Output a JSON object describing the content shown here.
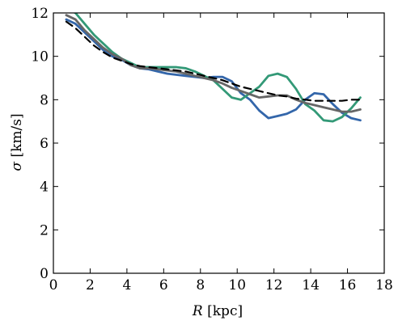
{
  "chart_data": {
    "type": "line",
    "xlabel_italic": "R",
    "xlabel_rest": " [kpc]",
    "ylabel_italic": "σ",
    "ylabel_rest": " [km/s]",
    "xlim": [
      0,
      18
    ],
    "ylim": [
      0,
      12
    ],
    "xticks": [
      0,
      2,
      4,
      6,
      8,
      10,
      12,
      14,
      16,
      18
    ],
    "yticks": [
      0,
      2,
      4,
      6,
      8,
      10,
      12
    ],
    "grid": false,
    "series": [
      {
        "color": "#3366aa",
        "style": "solid",
        "x": [
          0.7,
          1.2,
          1.7,
          2.2,
          2.7,
          3.2,
          3.7,
          4.2,
          4.7,
          5.2,
          5.7,
          6.2,
          6.7,
          7.2,
          7.7,
          8.2,
          8.7,
          9.2,
          9.7,
          10.2,
          10.7,
          11.2,
          11.7,
          12.2,
          12.7,
          13.2,
          13.7,
          14.2,
          14.7,
          15.2,
          15.7,
          16.2,
          16.7
        ],
        "y": [
          11.7,
          11.5,
          11.1,
          10.7,
          10.3,
          10.0,
          9.85,
          9.6,
          9.45,
          9.4,
          9.3,
          9.2,
          9.15,
          9.1,
          9.05,
          9.0,
          9.05,
          9.05,
          8.85,
          8.3,
          8.0,
          7.5,
          7.15,
          7.25,
          7.35,
          7.55,
          8.0,
          8.3,
          8.25,
          7.8,
          7.4,
          7.15,
          7.05
        ]
      },
      {
        "color": "#339977",
        "style": "solid",
        "x": [
          0.7,
          1.2,
          1.7,
          2.2,
          2.7,
          3.2,
          3.7,
          4.2,
          4.7,
          5.2,
          5.7,
          6.2,
          6.7,
          7.2,
          7.7,
          8.2,
          8.7,
          9.2,
          9.7,
          10.2,
          10.7,
          11.2,
          11.7,
          12.2,
          12.7,
          13.2,
          13.7,
          14.2,
          14.7,
          15.2,
          15.7,
          16.2,
          16.7
        ],
        "y": [
          12.2,
          12.0,
          11.5,
          11.0,
          10.6,
          10.2,
          9.9,
          9.7,
          9.5,
          9.5,
          9.5,
          9.5,
          9.5,
          9.45,
          9.3,
          9.1,
          8.9,
          8.5,
          8.1,
          8.0,
          8.3,
          8.6,
          9.1,
          9.2,
          9.05,
          8.5,
          7.8,
          7.5,
          7.05,
          7.0,
          7.2,
          7.6,
          8.1
        ]
      },
      {
        "color": "#666666",
        "style": "solid",
        "x": [
          0.7,
          1.2,
          1.7,
          2.2,
          2.7,
          3.2,
          3.7,
          4.2,
          4.7,
          5.2,
          5.7,
          6.2,
          6.7,
          7.2,
          7.7,
          8.2,
          8.7,
          9.2,
          9.7,
          10.2,
          10.7,
          11.2,
          11.7,
          12.2,
          12.7,
          13.2,
          13.7,
          14.2,
          14.7,
          15.2,
          15.7,
          16.2,
          16.7
        ],
        "y": [
          11.9,
          11.7,
          11.2,
          10.8,
          10.4,
          10.1,
          9.9,
          9.6,
          9.45,
          9.45,
          9.4,
          9.35,
          9.3,
          9.2,
          9.1,
          9.0,
          8.9,
          8.75,
          8.55,
          8.4,
          8.25,
          8.1,
          8.15,
          8.2,
          8.2,
          8.0,
          7.85,
          7.75,
          7.65,
          7.55,
          7.45,
          7.45,
          7.55
        ]
      },
      {
        "color": "#000000",
        "style": "dashed",
        "x": [
          0.7,
          1.2,
          1.7,
          2.2,
          2.7,
          3.2,
          3.7,
          4.2,
          4.7,
          5.2,
          5.7,
          6.2,
          6.7,
          7.2,
          7.7,
          8.2,
          8.7,
          9.2,
          9.7,
          10.2,
          10.7,
          11.2,
          11.7,
          12.2,
          12.7,
          13.2,
          13.7,
          14.2,
          14.7,
          15.2,
          15.7,
          16.2,
          16.7
        ],
        "y": [
          11.6,
          11.3,
          10.9,
          10.5,
          10.2,
          9.95,
          9.8,
          9.65,
          9.55,
          9.5,
          9.45,
          9.4,
          9.35,
          9.3,
          9.2,
          9.1,
          9.0,
          8.9,
          8.75,
          8.6,
          8.5,
          8.4,
          8.3,
          8.2,
          8.15,
          8.05,
          8.0,
          7.95,
          7.95,
          7.95,
          7.95,
          8.0,
          8.0
        ]
      }
    ]
  }
}
